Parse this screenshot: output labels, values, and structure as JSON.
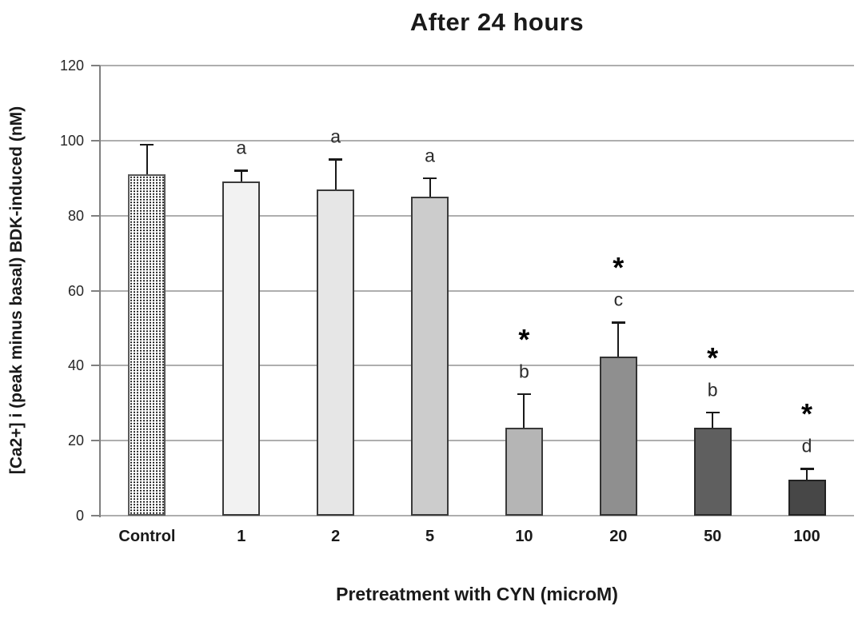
{
  "chart_data": {
    "type": "bar",
    "title": "After 24 hours",
    "xlabel": "Pretreatment with CYN (microM)",
    "ylabel": "[Ca2+] i (peak minus basal) BDK-induced (nM)",
    "categories": [
      "Control",
      "1",
      "2",
      "5",
      "10",
      "20",
      "50",
      "100"
    ],
    "values": [
      91,
      89,
      87,
      85,
      23.5,
      42.5,
      23.5,
      9.5
    ],
    "errors_plus": [
      8,
      3,
      8,
      5,
      9,
      9,
      4,
      3
    ],
    "annotations": [
      {
        "star": false,
        "letter": ""
      },
      {
        "star": false,
        "letter": "a"
      },
      {
        "star": false,
        "letter": "a"
      },
      {
        "star": false,
        "letter": "a"
      },
      {
        "star": true,
        "letter": "b"
      },
      {
        "star": true,
        "letter": "c"
      },
      {
        "star": true,
        "letter": "b"
      },
      {
        "star": true,
        "letter": "d"
      }
    ],
    "star_symbol": "*",
    "ylim": [
      0,
      120
    ],
    "yticks": [
      0,
      20,
      40,
      60,
      80,
      100,
      120
    ],
    "grid": true,
    "legend": "none",
    "bar_styles": [
      {
        "fill": "pattern-dots",
        "stroke": "#5a5a5a"
      },
      {
        "fill": "#f2f2f2",
        "stroke": "#3a3a3a"
      },
      {
        "fill": "#e6e6e6",
        "stroke": "#3a3a3a"
      },
      {
        "fill": "#cccccc",
        "stroke": "#3a3a3a"
      },
      {
        "fill": "#b5b5b5",
        "stroke": "#3a3a3a"
      },
      {
        "fill": "#8f8f8f",
        "stroke": "#333333"
      },
      {
        "fill": "#5f5f5f",
        "stroke": "#2c2c2c"
      },
      {
        "fill": "#474747",
        "stroke": "#222222"
      }
    ],
    "colors": {
      "gridline": "#aeaeae",
      "axis": "#7f7f7f",
      "error_bar": "#1a1a1a",
      "text": "#1a1a1a",
      "annotation": "#2b2b2b"
    }
  }
}
